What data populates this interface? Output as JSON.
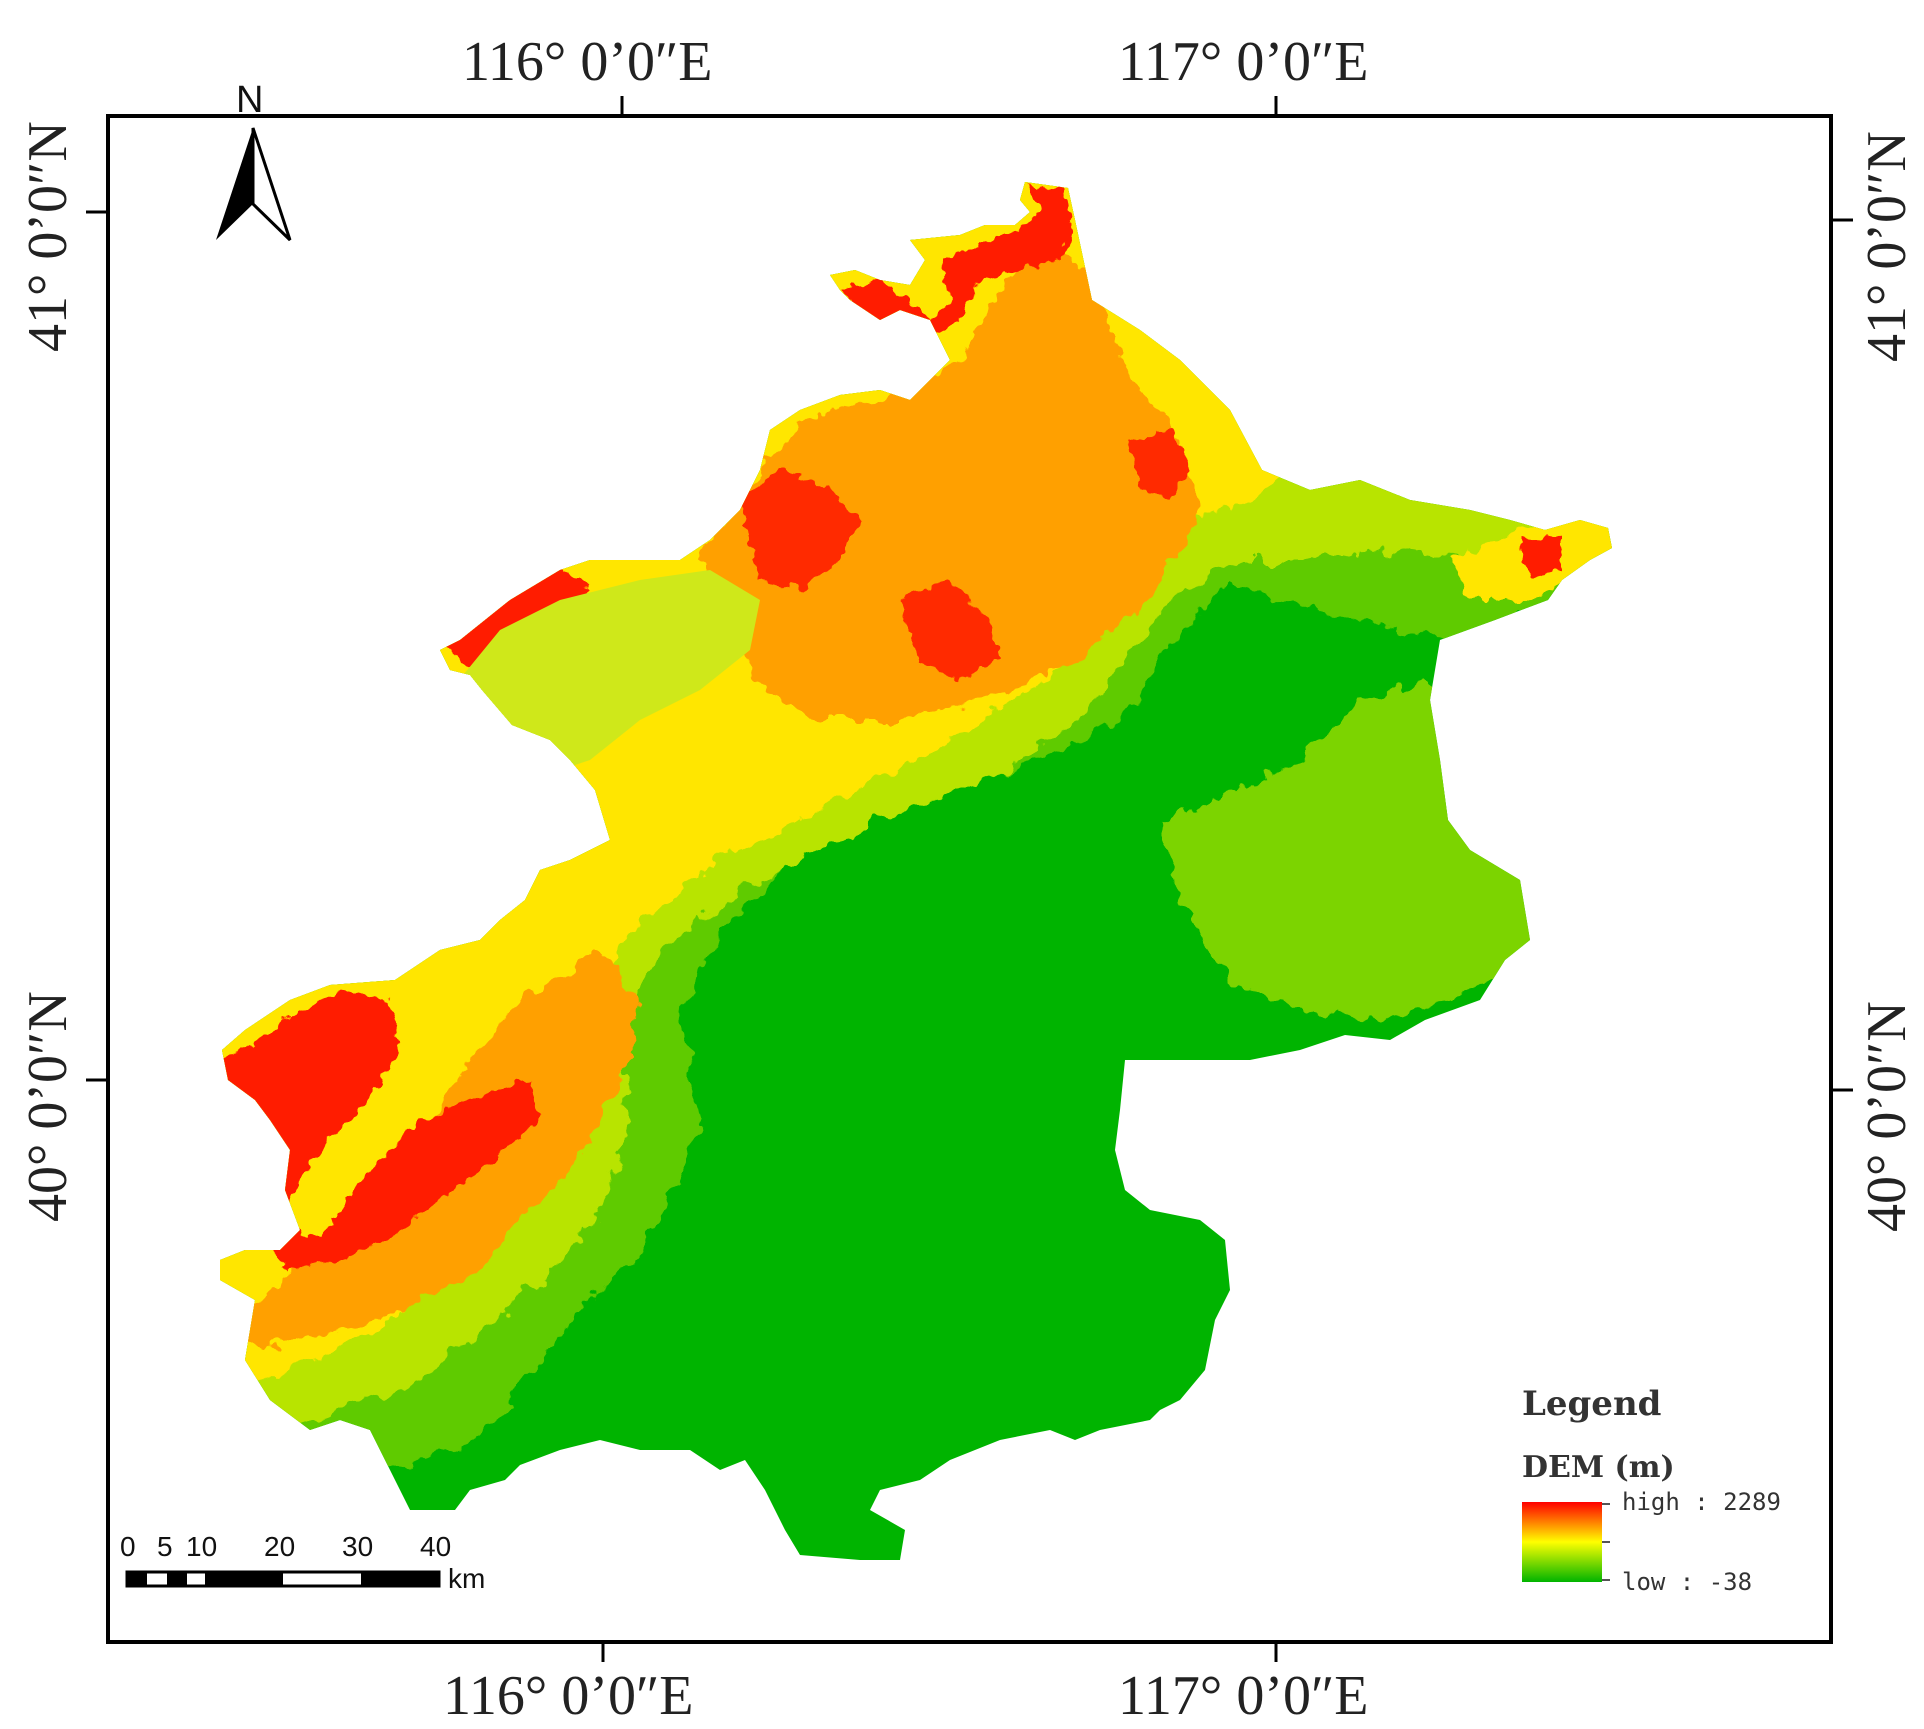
{
  "map": {
    "longitude_labels": {
      "top": [
        "116° 0’0″E",
        "117° 0’0″E"
      ],
      "bottom": [
        "116° 0’0″E",
        "117° 0’0″E"
      ]
    },
    "latitude_labels": {
      "left": [
        "41° 0’0″N",
        "40° 0’0″N"
      ],
      "right": [
        "41° 0’0″N",
        "40° 0’0″N"
      ]
    },
    "north_arrow": {
      "label": "N",
      "icon": "north-arrow-icon"
    },
    "scale_bar": {
      "ticks": [
        "0",
        "5",
        "10",
        "20",
        "30",
        "40"
      ],
      "unit": "km"
    },
    "legend": {
      "title": "Legend",
      "layer": "DEM (m)",
      "high_label": "high : 2289",
      "low_label": "low : -38",
      "colors": {
        "high": "#ff0000",
        "mid": "#ffff00",
        "low": "#00b400"
      }
    },
    "terrain_colors": {
      "plain": "#00b400",
      "low_hills": "#6ad000",
      "hills": "#c8e600",
      "mid": "#ffff00",
      "upper": "#ffa500",
      "high": "#ff0000",
      "reservoir": "#cfe81a"
    }
  }
}
